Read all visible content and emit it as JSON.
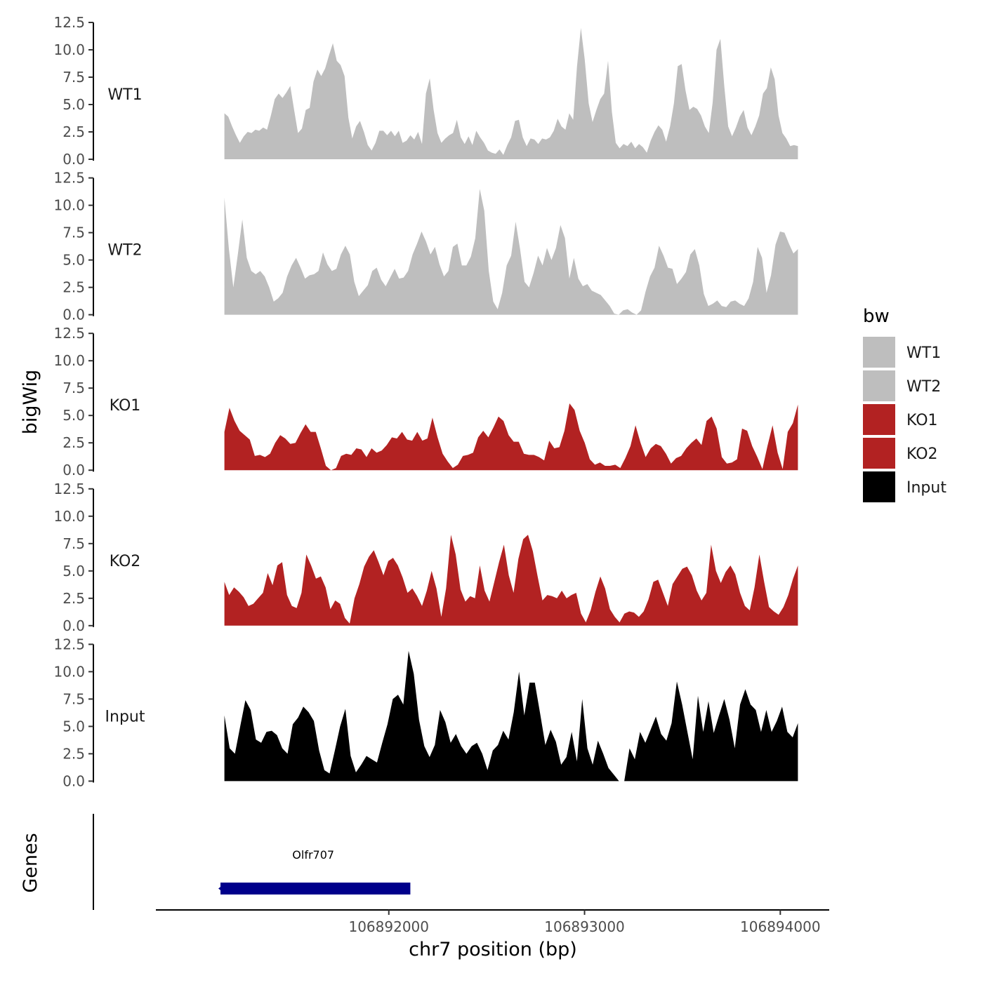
{
  "chart_data": {
    "type": "area",
    "title": "",
    "x_axis": {
      "title": "chr7 position (bp)",
      "range": [
        106890810,
        106894250
      ],
      "ticks": [
        106892000,
        106893000,
        106894000
      ],
      "tick_labels": [
        "106892000",
        "106893000",
        "106894000"
      ]
    },
    "y_axis": {
      "title": "bigWig",
      "range": [
        0,
        12.5
      ],
      "ticks": [
        0,
        2.5,
        5,
        7.5,
        10,
        12.5
      ],
      "tick_labels": [
        "0.0",
        "2.5",
        "5.0",
        "7.5",
        "10.0",
        "12.5"
      ]
    },
    "x_start": 106891160,
    "x_end": 106894090,
    "legend": {
      "title": "bw",
      "position": "right",
      "entries": [
        {
          "label": "WT1",
          "color": "#BEBEBE"
        },
        {
          "label": "WT2",
          "color": "#BEBEBE"
        },
        {
          "label": "KO1",
          "color": "#B22222"
        },
        {
          "label": "KO2",
          "color": "#B22222"
        },
        {
          "label": "Input",
          "color": "#000000"
        }
      ]
    },
    "series": [
      {
        "name": "WT1",
        "color": "#BEBEBE",
        "values": [
          4.2,
          3.9,
          3.0,
          2.2,
          1.5,
          2.1,
          2.5,
          2.4,
          2.7,
          2.6,
          2.9,
          2.7,
          4.0,
          5.5,
          6.0,
          5.6,
          6.1,
          6.7,
          4.5,
          2.4,
          2.8,
          4.5,
          4.7,
          7.1,
          8.2,
          7.6,
          8.3,
          9.5,
          10.6,
          9.0,
          8.6,
          7.6,
          3.8,
          1.9,
          3.0,
          3.5,
          2.5,
          1.3,
          0.8,
          1.5,
          2.6,
          2.6,
          2.2,
          2.6,
          2.1,
          2.6,
          1.5,
          1.7,
          2.2,
          1.8,
          2.5,
          1.4,
          6.0,
          7.4,
          4.5,
          2.4,
          1.5,
          1.9,
          2.2,
          2.4,
          3.6,
          2.0,
          1.4,
          2.1,
          1.3,
          2.6,
          2.0,
          1.5,
          0.8,
          0.6,
          0.5,
          0.9,
          0.4,
          1.3,
          2.0,
          3.5,
          3.6,
          2.0,
          1.2,
          1.9,
          1.8,
          1.4,
          1.9,
          1.8,
          2.0,
          2.6,
          3.7,
          3.0,
          2.7,
          4.2,
          3.6,
          8.5,
          12.0,
          9.1,
          5.1,
          3.4,
          4.5,
          5.5,
          6.0,
          9.0,
          4.3,
          1.5,
          1.0,
          1.4,
          1.2,
          1.6,
          1.0,
          1.4,
          1.1,
          0.6,
          1.7,
          2.5,
          3.1,
          2.7,
          1.6,
          3.0,
          5.1,
          8.5,
          8.7,
          6.3,
          4.5,
          4.8,
          4.6,
          4.0,
          3.0,
          2.4,
          5.2,
          10.0,
          11.0,
          6.7,
          3.0,
          2.1,
          2.9,
          3.9,
          4.5,
          2.9,
          2.2,
          3.0,
          4.0,
          6.0,
          6.5,
          8.4,
          7.3,
          4.0,
          2.4,
          1.9,
          1.2,
          1.3,
          1.2
        ]
      },
      {
        "name": "WT2",
        "color": "#BEBEBE",
        "values": [
          10.7,
          6.0,
          2.5,
          5.5,
          8.7,
          5.2,
          4.0,
          3.7,
          4.0,
          3.5,
          2.5,
          1.2,
          1.5,
          2.0,
          3.5,
          4.5,
          5.2,
          4.3,
          3.3,
          3.6,
          3.7,
          4.0,
          5.7,
          4.6,
          4.0,
          4.2,
          5.5,
          6.3,
          5.5,
          3.0,
          1.7,
          2.2,
          2.7,
          4.0,
          4.3,
          3.2,
          2.6,
          3.4,
          4.2,
          3.3,
          3.4,
          4.0,
          5.5,
          6.5,
          7.6,
          6.7,
          5.5,
          6.2,
          4.6,
          3.5,
          4.0,
          6.2,
          6.5,
          4.5,
          4.5,
          5.3,
          7.0,
          11.5,
          9.5,
          4.0,
          1.2,
          0.5,
          2.0,
          4.5,
          5.4,
          8.5,
          6.0,
          3.0,
          2.5,
          3.8,
          5.4,
          4.5,
          6.1,
          5.0,
          6.1,
          8.2,
          7.0,
          3.3,
          5.2,
          3.3,
          2.6,
          2.8,
          2.2,
          2.0,
          1.8,
          1.3,
          0.8,
          0.1,
          0.0,
          0.4,
          0.5,
          0.2,
          0.0,
          0.4,
          2.1,
          3.5,
          4.3,
          6.3,
          5.4,
          4.3,
          4.2,
          2.8,
          3.3,
          3.9,
          5.5,
          6.0,
          4.5,
          1.9,
          0.8,
          1.0,
          1.3,
          0.8,
          0.7,
          1.2,
          1.3,
          1.0,
          0.8,
          1.5,
          3.0,
          6.2,
          5.2,
          2.0,
          3.6,
          6.4,
          7.6,
          7.5,
          6.5,
          5.6,
          6.0
        ]
      },
      {
        "name": "KO1",
        "color": "#B22222",
        "values": [
          3.5,
          5.7,
          4.5,
          3.6,
          3.2,
          2.8,
          1.3,
          1.4,
          1.2,
          1.5,
          2.5,
          3.2,
          2.9,
          2.4,
          2.5,
          3.4,
          4.2,
          3.5,
          3.5,
          2.0,
          0.4,
          -0.3,
          0.2,
          1.3,
          1.5,
          1.4,
          2.0,
          1.9,
          1.2,
          2.0,
          1.6,
          1.8,
          2.3,
          3.0,
          2.9,
          3.5,
          2.8,
          2.7,
          3.5,
          2.7,
          2.9,
          4.8,
          3.0,
          1.5,
          0.8,
          0.2,
          0.5,
          1.3,
          1.4,
          1.6,
          3.0,
          3.6,
          3.0,
          3.9,
          4.9,
          4.5,
          3.2,
          2.6,
          2.6,
          1.5,
          1.4,
          1.4,
          1.2,
          0.9,
          2.7,
          2.0,
          2.1,
          3.6,
          6.1,
          5.5,
          3.6,
          2.5,
          1.0,
          0.5,
          0.7,
          0.4,
          0.4,
          0.5,
          0.2,
          1.1,
          2.2,
          4.1,
          2.5,
          1.2,
          2.0,
          2.4,
          2.2,
          1.5,
          0.6,
          1.1,
          1.3,
          2.0,
          2.5,
          2.9,
          2.3,
          4.5,
          4.9,
          3.8,
          1.2,
          0.6,
          0.7,
          1.0,
          3.8,
          3.6,
          2.2,
          1.2,
          0.1,
          2.2,
          4.1,
          1.6,
          0.1,
          3.5,
          4.3,
          6.0
        ]
      },
      {
        "name": "KO2",
        "color": "#B22222",
        "values": [
          4.0,
          2.8,
          3.5,
          3.1,
          2.6,
          1.8,
          2.0,
          2.5,
          3.0,
          4.8,
          3.7,
          5.5,
          5.8,
          2.8,
          1.8,
          1.6,
          3.0,
          6.5,
          5.5,
          4.3,
          4.5,
          3.5,
          1.5,
          2.3,
          2.0,
          0.7,
          0.2,
          2.5,
          3.8,
          5.4,
          6.3,
          6.9,
          5.8,
          4.6,
          5.9,
          6.2,
          5.5,
          4.4,
          3.0,
          3.4,
          2.7,
          1.8,
          3.2,
          5.0,
          3.4,
          0.8,
          3.4,
          8.3,
          6.5,
          3.3,
          2.2,
          2.7,
          2.5,
          5.5,
          3.2,
          2.2,
          4.0,
          5.8,
          7.4,
          4.6,
          3.0,
          6.1,
          7.9,
          8.3,
          6.8,
          4.5,
          2.3,
          2.8,
          2.7,
          2.5,
          3.2,
          2.5,
          2.8,
          3.0,
          1.1,
          0.3,
          1.4,
          3.1,
          4.5,
          3.4,
          1.5,
          0.8,
          0.3,
          1.1,
          1.3,
          1.2,
          0.8,
          1.3,
          2.4,
          4.0,
          4.2,
          3.0,
          1.8,
          3.8,
          4.5,
          5.2,
          5.4,
          4.6,
          3.2,
          2.3,
          3.0,
          7.4,
          5.0,
          3.9,
          4.9,
          5.5,
          4.7,
          3.0,
          1.8,
          1.4,
          3.5,
          6.5,
          4.0,
          1.7,
          1.3,
          1.0,
          1.7,
          2.8,
          4.3,
          5.5
        ]
      },
      {
        "name": "Input",
        "color": "#000000",
        "values": [
          6.0,
          3.0,
          2.5,
          5.0,
          7.4,
          6.5,
          3.8,
          3.5,
          4.5,
          4.6,
          4.2,
          3.0,
          2.5,
          5.2,
          5.8,
          6.8,
          6.3,
          5.5,
          2.8,
          1.0,
          0.7,
          2.8,
          5.0,
          6.6,
          2.3,
          0.8,
          1.5,
          2.3,
          2.0,
          1.7,
          3.5,
          5.2,
          7.5,
          7.9,
          7.0,
          11.9,
          9.8,
          5.6,
          3.2,
          2.2,
          3.3,
          6.5,
          5.4,
          3.5,
          4.3,
          3.2,
          2.5,
          3.2,
          3.5,
          2.5,
          1.0,
          2.8,
          3.3,
          4.6,
          3.8,
          6.3,
          10.0,
          6.0,
          9.0,
          9.0,
          6.2,
          3.3,
          4.7,
          3.6,
          1.5,
          2.2,
          4.5,
          1.8,
          7.5,
          3.0,
          1.5,
          3.7,
          2.5,
          1.2,
          0.6,
          0.0,
          -0.3,
          3.0,
          2.0,
          4.5,
          3.5,
          4.7,
          5.9,
          4.3,
          3.7,
          5.3,
          9.1,
          7.0,
          4.5,
          2.0,
          7.8,
          4.5,
          7.3,
          4.4,
          6.0,
          7.5,
          5.6,
          3.0,
          7.0,
          8.4,
          7.0,
          6.5,
          4.5,
          6.5,
          4.5,
          5.5,
          6.8,
          4.5,
          4.0,
          5.3
        ]
      }
    ],
    "genes_track": {
      "label": "Genes",
      "genes": [
        {
          "name": "Olfr707",
          "start": 106891140,
          "end": 106892110,
          "color": "#00008B"
        }
      ]
    }
  }
}
